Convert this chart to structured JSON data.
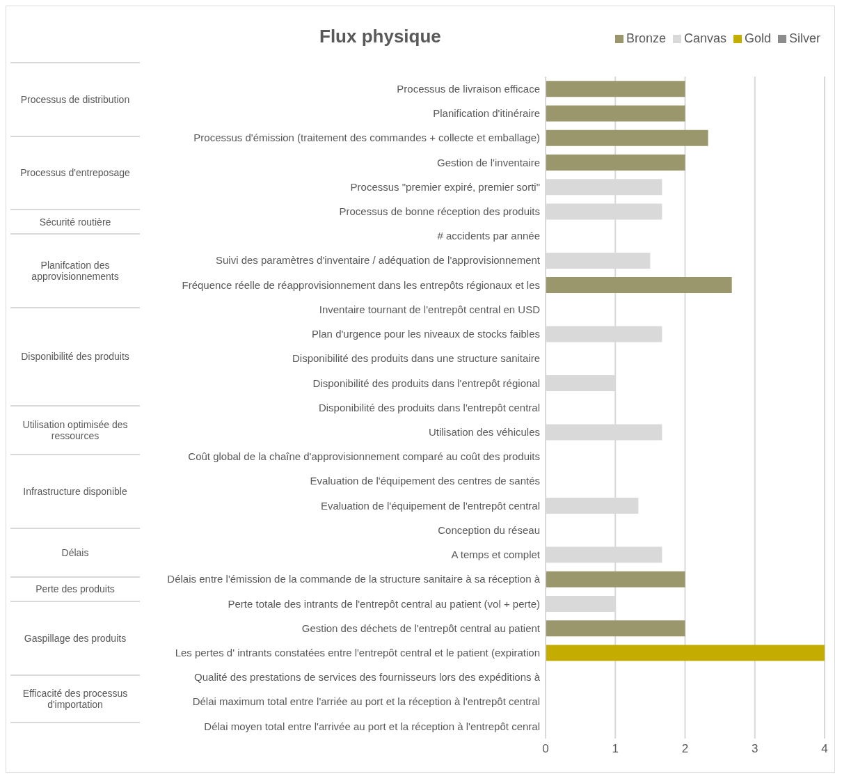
{
  "chart_data": {
    "type": "bar",
    "title": "Flux physique",
    "orientation": "horizontal",
    "stacked": true,
    "grid": "x",
    "legend": "top right",
    "categories": [
      "Processus de livraison efficace",
      "Planification d'itinéraire",
      "Processus d'émission (traitement des commandes + collecte et emballage)",
      "Gestion de l'inventaire",
      "Processus \"premier expiré, premier sorti\"",
      "Processus de bonne réception des produits",
      "# accidents par année",
      "Suivi des paramètres d'inventaire / adéquation de l'approvisionnement",
      "Fréquence réelle de réapprovisionnement dans les entrepôts régionaux et les",
      "Inventaire tournant de l'entrepôt central en USD",
      "Plan d'urgence  pour les niveaux de stocks faibles",
      "Disponibilité des produits dans une structure sanitaire",
      "Disponibilité des produits dans l'entrepôt régional",
      "Disponibilité des produits dans l'entrepôt central",
      "Utilisation des véhicules",
      "Coût global de la chaîne d'approvisionnement comparé au coût des produits",
      "Evaluation de l'équipement des centres de santés",
      "Evaluation de l'équipement de l'entrepôt central",
      "Conception du réseau",
      "A temps et complet",
      "Délais entre l'émission de la commande de la structure sanitaire à sa réception à",
      "Perte totale des intrants de l'entrepôt central au patient (vol + perte)",
      "Gestion des déchets de l'entrepôt central au patient",
      "Les pertes d' intrants constatées entre l'entrepôt central et le patient (expiration",
      "Qualité des prestations de services des fournisseurs lors des expéditions à",
      "Délai maximum total entre l'arriée au port et la réception à l'entrepôt central",
      "Délai moyen total entre l'arrivée au port et la réception à l'entrepôt cenral"
    ],
    "series": [
      {
        "name": "Canvas",
        "color": "#d9d9d9",
        "values": [
          null,
          null,
          null,
          null,
          1.67,
          1.67,
          null,
          1.5,
          null,
          null,
          1.67,
          null,
          1,
          null,
          1.67,
          null,
          null,
          1.33,
          null,
          1.67,
          null,
          1,
          null,
          null,
          null,
          null,
          null
        ]
      },
      {
        "name": "Bronze",
        "color": "#9b976c",
        "values": [
          2,
          2,
          2.33,
          2,
          null,
          null,
          null,
          null,
          2.67,
          null,
          null,
          null,
          null,
          null,
          null,
          null,
          null,
          null,
          null,
          null,
          2,
          null,
          2,
          null,
          null,
          null,
          null
        ]
      },
      {
        "name": "Silver",
        "color": "#8c8c8c",
        "values": [
          null,
          null,
          null,
          null,
          null,
          null,
          null,
          null,
          null,
          null,
          null,
          null,
          null,
          null,
          null,
          null,
          null,
          null,
          null,
          null,
          null,
          null,
          null,
          null,
          null,
          null,
          null
        ]
      },
      {
        "name": "Gold",
        "color": "#c4ac00",
        "values": [
          null,
          null,
          null,
          null,
          null,
          null,
          null,
          null,
          null,
          null,
          null,
          null,
          null,
          null,
          null,
          null,
          null,
          null,
          null,
          null,
          null,
          null,
          null,
          4,
          null,
          null,
          null
        ]
      }
    ],
    "xlim": [
      0,
      4
    ],
    "xticks": [
      0,
      1,
      2,
      3,
      4
    ],
    "annotations": [
      "Processus de distribution",
      "Processus d'entreposage",
      "Sécurité routière",
      "Planifcation des approvisionnements",
      "Disponibilité des produits",
      "Utilisation optimisée des ressources",
      "Infrastructure disponible",
      "Délais",
      "Perte des produits",
      "Gaspillage des produits",
      "Efficacité des processus d'importation"
    ]
  }
}
